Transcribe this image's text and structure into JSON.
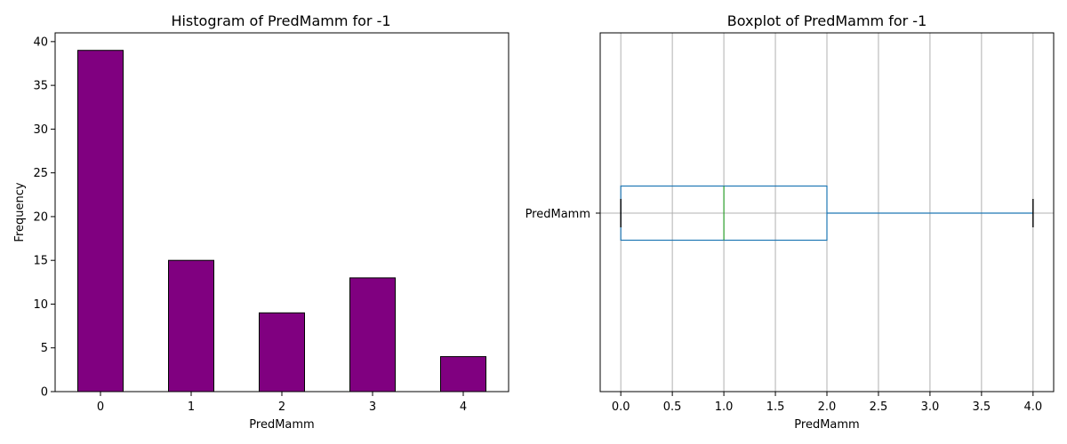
{
  "chart_data": [
    {
      "type": "bar",
      "title": "Histogram of PredMamm for -1",
      "xlabel": "PredMamm",
      "ylabel": "Frequency",
      "categories": [
        "0",
        "1",
        "2",
        "3",
        "4"
      ],
      "values": [
        39,
        15,
        9,
        13,
        4
      ],
      "ylim": [
        0,
        41
      ],
      "yticks": [
        0,
        5,
        10,
        15,
        20,
        25,
        30,
        35,
        40
      ],
      "grid": false,
      "colors": {
        "bar_fill": "#800080",
        "bar_edge": "#000000"
      }
    },
    {
      "type": "boxplot",
      "title": "Boxplot of PredMamm for -1",
      "xlabel": "PredMamm",
      "ylabel": "",
      "category": "PredMamm",
      "orientation": "horizontal",
      "whisker_low": 0,
      "q1": 0,
      "median": 1,
      "q3": 2,
      "whisker_high": 4,
      "xlim": [
        -0.2,
        4.2
      ],
      "xticks": [
        "0.0",
        "0.5",
        "1.0",
        "1.5",
        "2.0",
        "2.5",
        "3.0",
        "3.5",
        "4.0"
      ],
      "grid": true,
      "colors": {
        "box": "#1f77b4",
        "median": "#2ca02c",
        "cap": "#000000",
        "grid": "#b0b0b0"
      }
    }
  ]
}
